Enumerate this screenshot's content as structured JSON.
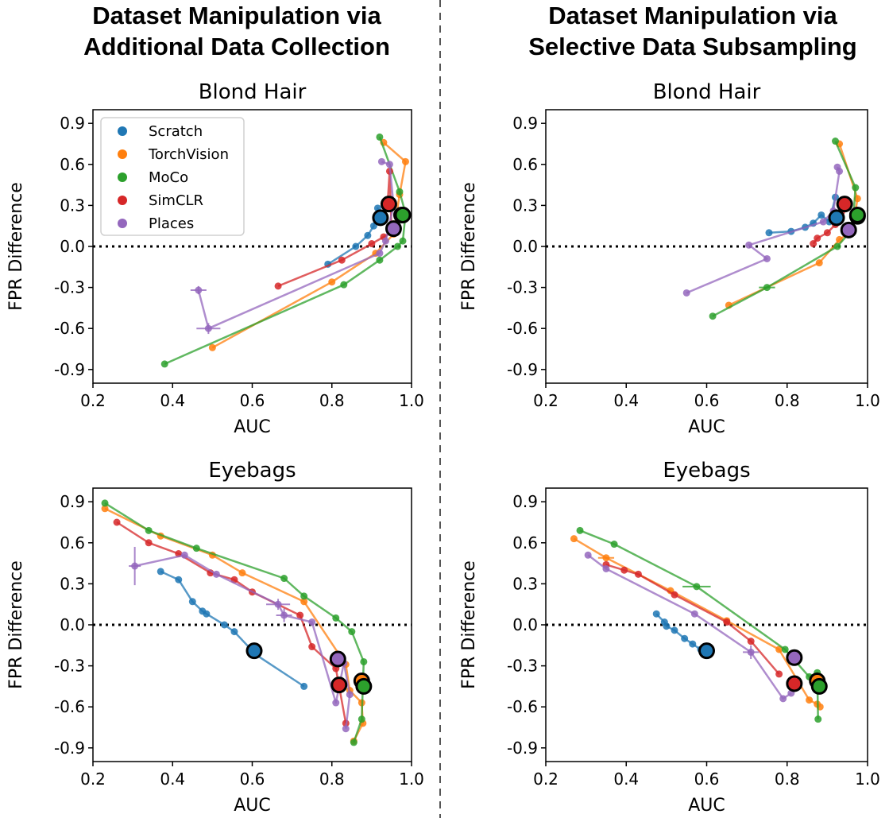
{
  "column_titles": [
    [
      "Dataset Manipulation via",
      "Additional Data Collection"
    ],
    [
      "Dataset Manipulation via",
      "Selective Data Subsampling"
    ]
  ],
  "legend": {
    "placement": "top-left of first panel",
    "entries": [
      {
        "name": "Scratch",
        "color": "#1f77b4"
      },
      {
        "name": "TorchVision",
        "color": "#ff7f0e"
      },
      {
        "name": "MoCo",
        "color": "#2ca02c"
      },
      {
        "name": "SimCLR",
        "color": "#d62728"
      },
      {
        "name": "Places",
        "color": "#9467bd"
      }
    ]
  },
  "chart_data": [
    {
      "type": "line",
      "title": "Blond Hair",
      "xlabel": "AUC",
      "ylabel": "FPR Difference",
      "xlim": [
        0.2,
        1.0
      ],
      "ylim": [
        -1.0,
        1.0
      ],
      "xticks": [
        "0.2",
        "0.4",
        "0.6",
        "0.8",
        "1.0"
      ],
      "yticks": [
        "0.9",
        "0.6",
        "0.3",
        "0.0",
        "-0.3",
        "-0.6",
        "-0.9"
      ],
      "zero_line": true,
      "grid": false,
      "series": [
        {
          "name": "Scratch",
          "color": "#1f77b4",
          "x": [
            0.79,
            0.86,
            0.89,
            0.905,
            0.915,
            0.922
          ],
          "y": [
            -0.13,
            0.0,
            0.08,
            0.15,
            0.28,
            0.21
          ],
          "highlight": [
            0.922,
            0.21
          ]
        },
        {
          "name": "TorchVision",
          "color": "#ff7f0e",
          "x": [
            0.5,
            0.8,
            0.91,
            0.955,
            0.97,
            0.985,
            0.93
          ],
          "y": [
            -0.74,
            -0.26,
            -0.05,
            0.09,
            0.38,
            0.62,
            0.76
          ],
          "highlight": [
            0.975,
            0.23
          ]
        },
        {
          "name": "MoCo",
          "color": "#2ca02c",
          "x": [
            0.38,
            0.83,
            0.92,
            0.965,
            0.978,
            0.985,
            0.97,
            0.92
          ],
          "y": [
            -0.86,
            -0.28,
            -0.1,
            0.0,
            0.04,
            0.24,
            0.4,
            0.8
          ],
          "highlight": [
            0.978,
            0.23
          ]
        },
        {
          "name": "SimCLR",
          "color": "#d62728",
          "x": [
            0.665,
            0.825,
            0.9,
            0.93,
            0.95,
            0.945,
            0.94
          ],
          "y": [
            -0.29,
            -0.1,
            0.02,
            0.07,
            0.1,
            0.55,
            0.31
          ],
          "highlight": [
            0.943,
            0.31
          ]
        },
        {
          "name": "Places",
          "color": "#9467bd",
          "x": [
            0.465,
            0.49,
            0.92,
            0.935,
            0.955,
            0.945,
            0.925
          ],
          "y": [
            -0.32,
            -0.6,
            -0.05,
            0.04,
            0.3,
            0.6,
            0.62
          ],
          "xerr": [
            0.02,
            0.03,
            0,
            0,
            0,
            0,
            0
          ],
          "yerr": [
            0.03,
            0.04,
            0,
            0,
            0,
            0,
            0
          ],
          "highlight": [
            0.955,
            0.13
          ]
        }
      ]
    },
    {
      "type": "line",
      "title": "Blond Hair",
      "xlabel": "AUC",
      "ylabel": "FPR Difference",
      "xlim": [
        0.2,
        1.0
      ],
      "ylim": [
        -1.0,
        1.0
      ],
      "xticks": [
        "0.2",
        "0.4",
        "0.6",
        "0.8",
        "1.0"
      ],
      "yticks": [
        "0.9",
        "0.6",
        "0.3",
        "0.0",
        "-0.3",
        "-0.6",
        "-0.9"
      ],
      "zero_line": true,
      "grid": false,
      "series": [
        {
          "name": "Scratch",
          "color": "#1f77b4",
          "x": [
            0.755,
            0.81,
            0.845,
            0.865,
            0.885,
            0.905,
            0.92
          ],
          "y": [
            0.1,
            0.11,
            0.14,
            0.17,
            0.23,
            0.18,
            0.36
          ],
          "highlight": [
            0.923,
            0.21
          ]
        },
        {
          "name": "TorchVision",
          "color": "#ff7f0e",
          "x": [
            0.655,
            0.88,
            0.93,
            0.955,
            0.97,
            0.975,
            0.93
          ],
          "y": [
            -0.43,
            -0.12,
            0.05,
            0.1,
            0.25,
            0.35,
            0.75
          ],
          "highlight": [
            0.975,
            0.22
          ]
        },
        {
          "name": "MoCo",
          "color": "#2ca02c",
          "x": [
            0.615,
            0.75,
            0.925,
            0.955,
            0.965,
            0.97,
            0.92
          ],
          "y": [
            -0.51,
            -0.3,
            0.0,
            0.1,
            0.23,
            0.43,
            0.77
          ],
          "xerr": [
            0,
            0.02,
            0,
            0,
            0,
            0,
            0
          ],
          "highlight": [
            0.975,
            0.23
          ]
        },
        {
          "name": "SimCLR",
          "color": "#d62728",
          "x": [
            0.865,
            0.875,
            0.9,
            0.92,
            0.935,
            0.945
          ],
          "y": [
            0.02,
            0.06,
            0.1,
            0.16,
            0.25,
            0.31
          ],
          "highlight": [
            0.943,
            0.31
          ]
        },
        {
          "name": "Places",
          "color": "#9467bd",
          "x": [
            0.55,
            0.75,
            0.705,
            0.89,
            0.915,
            0.93,
            0.925
          ],
          "y": [
            -0.34,
            -0.09,
            0.01,
            0.18,
            0.26,
            0.55,
            0.58
          ],
          "highlight": [
            0.953,
            0.12
          ]
        }
      ]
    },
    {
      "type": "line",
      "title": "Eyebags",
      "xlabel": "AUC",
      "ylabel": "FPR Difference",
      "xlim": [
        0.2,
        1.0
      ],
      "ylim": [
        -1.0,
        1.0
      ],
      "xticks": [
        "0.2",
        "0.4",
        "0.6",
        "0.8",
        "1.0"
      ],
      "yticks": [
        "0.9",
        "0.6",
        "0.3",
        "0.0",
        "-0.3",
        "-0.6",
        "-0.9"
      ],
      "zero_line": true,
      "grid": false,
      "series": [
        {
          "name": "Scratch",
          "color": "#1f77b4",
          "x": [
            0.73,
            0.61,
            0.555,
            0.53,
            0.485,
            0.475,
            0.45,
            0.415,
            0.37
          ],
          "y": [
            -0.45,
            -0.22,
            -0.05,
            0.0,
            0.08,
            0.1,
            0.17,
            0.33,
            0.39
          ],
          "highlight": [
            0.605,
            -0.19
          ]
        },
        {
          "name": "TorchVision",
          "color": "#ff7f0e",
          "x": [
            0.23,
            0.37,
            0.5,
            0.575,
            0.73,
            0.835,
            0.845,
            0.875,
            0.878,
            0.855
          ],
          "y": [
            0.85,
            0.65,
            0.51,
            0.38,
            0.17,
            -0.29,
            -0.48,
            -0.57,
            -0.72,
            -0.85
          ],
          "highlight": [
            0.875,
            -0.41
          ]
        },
        {
          "name": "MoCo",
          "color": "#2ca02c",
          "x": [
            0.23,
            0.34,
            0.46,
            0.68,
            0.73,
            0.81,
            0.85,
            0.88,
            0.875,
            0.855
          ],
          "y": [
            0.89,
            0.69,
            0.56,
            0.34,
            0.21,
            0.05,
            -0.05,
            -0.27,
            -0.69,
            -0.86
          ],
          "highlight": [
            0.88,
            -0.45
          ]
        },
        {
          "name": "SimCLR",
          "color": "#d62728",
          "x": [
            0.26,
            0.34,
            0.415,
            0.495,
            0.555,
            0.6,
            0.72,
            0.75,
            0.81,
            0.835
          ],
          "y": [
            0.75,
            0.6,
            0.52,
            0.38,
            0.33,
            0.24,
            0.07,
            -0.16,
            -0.32,
            -0.72
          ],
          "highlight": [
            0.818,
            -0.44
          ]
        },
        {
          "name": "Places",
          "color": "#9467bd",
          "x": [
            0.305,
            0.43,
            0.51,
            0.665,
            0.68,
            0.75,
            0.81,
            0.83,
            0.845,
            0.835
          ],
          "y": [
            0.43,
            0.51,
            0.37,
            0.15,
            0.07,
            0.02,
            -0.57,
            -0.28,
            -0.51,
            -0.76
          ],
          "xerr": [
            0.015,
            0,
            0,
            0.03,
            0.02,
            0,
            0,
            0,
            0,
            0
          ],
          "yerr": [
            0.14,
            0,
            0,
            0.04,
            0.05,
            0,
            0,
            0,
            0,
            0
          ],
          "highlight": [
            0.815,
            -0.25
          ]
        }
      ]
    },
    {
      "type": "line",
      "title": "Eyebags",
      "xlabel": "AUC",
      "ylabel": "FPR Difference",
      "xlim": [
        0.2,
        1.0
      ],
      "ylim": [
        -1.0,
        1.0
      ],
      "xticks": [
        "0.2",
        "0.4",
        "0.6",
        "0.8",
        "1.0"
      ],
      "yticks": [
        "0.9",
        "0.6",
        "0.3",
        "0.0",
        "-0.3",
        "-0.6",
        "-0.9"
      ],
      "zero_line": true,
      "grid": false,
      "series": [
        {
          "name": "Scratch",
          "color": "#1f77b4",
          "x": [
            0.475,
            0.495,
            0.5,
            0.52,
            0.545,
            0.565,
            0.585
          ],
          "y": [
            0.08,
            0.02,
            -0.01,
            -0.04,
            -0.1,
            -0.14,
            -0.18
          ],
          "highlight": [
            0.6,
            -0.19
          ]
        },
        {
          "name": "TorchVision",
          "color": "#ff7f0e",
          "x": [
            0.27,
            0.35,
            0.51,
            0.65,
            0.78,
            0.855,
            0.875,
            0.882
          ],
          "y": [
            0.63,
            0.49,
            0.25,
            0.03,
            -0.18,
            -0.55,
            -0.58,
            -0.6
          ],
          "xerr": [
            0,
            0.02,
            0,
            0,
            0,
            0,
            0,
            0
          ],
          "highlight": [
            0.875,
            -0.41
          ]
        },
        {
          "name": "MoCo",
          "color": "#2ca02c",
          "x": [
            0.285,
            0.37,
            0.575,
            0.795,
            0.855,
            0.875,
            0.877
          ],
          "y": [
            0.69,
            0.59,
            0.28,
            -0.18,
            -0.38,
            -0.35,
            -0.69
          ],
          "xerr": [
            0,
            0,
            0.035,
            0,
            0,
            0,
            0
          ],
          "highlight": [
            0.88,
            -0.45
          ]
        },
        {
          "name": "SimCLR",
          "color": "#d62728",
          "x": [
            0.35,
            0.395,
            0.43,
            0.52,
            0.65,
            0.71,
            0.78
          ],
          "y": [
            0.44,
            0.4,
            0.37,
            0.22,
            0.02,
            -0.12,
            -0.36
          ],
          "highlight": [
            0.818,
            -0.43
          ]
        },
        {
          "name": "Places",
          "color": "#9467bd",
          "x": [
            0.305,
            0.35,
            0.57,
            0.71,
            0.79,
            0.81
          ],
          "y": [
            0.51,
            0.41,
            0.08,
            -0.2,
            -0.54,
            -0.5
          ],
          "xerr": [
            0,
            0,
            0,
            0.02,
            0,
            0
          ],
          "yerr": [
            0,
            0,
            0,
            0.05,
            0,
            0
          ],
          "highlight": [
            0.818,
            -0.24
          ]
        }
      ]
    }
  ]
}
